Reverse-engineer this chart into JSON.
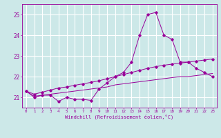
{
  "hours": [
    0,
    1,
    2,
    3,
    4,
    5,
    6,
    7,
    8,
    9,
    10,
    11,
    12,
    13,
    14,
    15,
    16,
    17,
    18,
    19,
    20,
    21,
    22,
    23
  ],
  "line1": [
    21.3,
    21.0,
    21.1,
    21.1,
    20.8,
    21.0,
    20.9,
    20.9,
    20.85,
    21.4,
    21.7,
    22.0,
    22.2,
    22.7,
    24.0,
    25.0,
    25.1,
    24.0,
    23.8,
    22.7,
    22.7,
    22.4,
    22.2,
    22.0
  ],
  "line2": [
    21.3,
    21.15,
    21.25,
    21.35,
    21.45,
    21.5,
    21.58,
    21.65,
    21.72,
    21.8,
    21.9,
    22.0,
    22.1,
    22.2,
    22.3,
    22.4,
    22.48,
    22.55,
    22.6,
    22.65,
    22.7,
    22.75,
    22.8,
    22.85
  ],
  "line3": [
    21.3,
    21.05,
    21.1,
    21.15,
    21.2,
    21.25,
    21.3,
    21.35,
    21.4,
    21.45,
    21.5,
    21.6,
    21.65,
    21.7,
    21.75,
    21.8,
    21.85,
    21.9,
    21.95,
    22.0,
    22.0,
    22.05,
    22.1,
    22.15
  ],
  "line_color": "#990099",
  "bg_color": "#cce8e8",
  "grid_color": "#ffffff",
  "xlabel": "Windchill (Refroidissement éolien,°C)",
  "ylim": [
    20.5,
    25.5
  ],
  "xlim": [
    -0.5,
    23.5
  ],
  "yticks": [
    21,
    22,
    23,
    24,
    25
  ],
  "xticks": [
    0,
    1,
    2,
    3,
    4,
    5,
    6,
    7,
    8,
    9,
    10,
    11,
    12,
    13,
    14,
    15,
    16,
    17,
    18,
    19,
    20,
    21,
    22,
    23
  ]
}
